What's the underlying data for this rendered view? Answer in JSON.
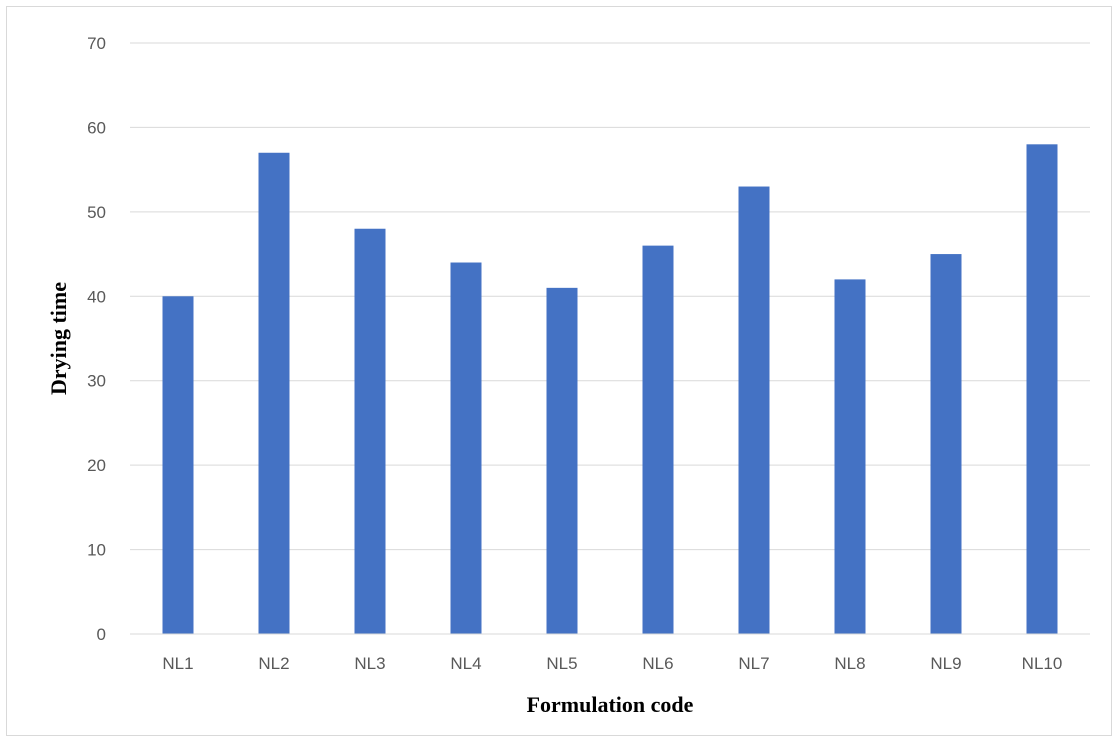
{
  "chart_data": {
    "type": "bar",
    "categories": [
      "NL1",
      "NL2",
      "NL3",
      "NL4",
      "NL5",
      "NL6",
      "NL7",
      "NL8",
      "NL9",
      "NL10"
    ],
    "values": [
      40,
      57,
      48,
      44,
      41,
      46,
      53,
      42,
      45,
      58
    ],
    "xlabel": "Formulation code",
    "ylabel": "Drying time",
    "ylim": [
      0,
      70
    ],
    "yticks": [
      0,
      10,
      20,
      30,
      40,
      50,
      60,
      70
    ],
    "grid": true,
    "legend": "none",
    "bar_color": "#4472c4",
    "grid_color": "#d9d9d9"
  }
}
